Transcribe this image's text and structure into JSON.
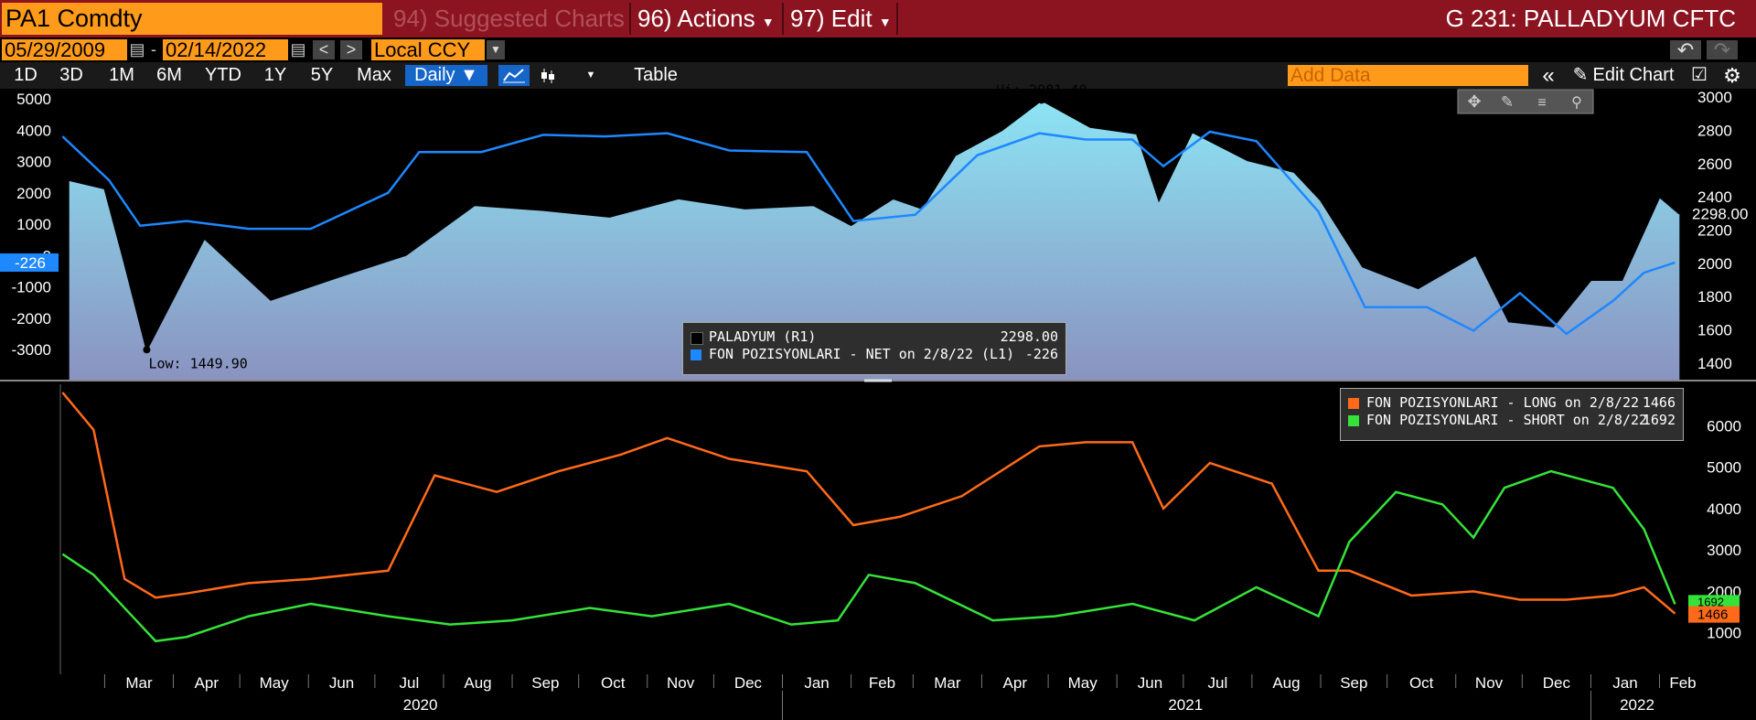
{
  "toolbar": {
    "ticker": "PA1 Comdty",
    "suggested": "94) Suggested Charts",
    "actions": "96) Actions",
    "edit": "97) Edit",
    "page_title": "G 231: PALLADYUM CFTC"
  },
  "range": {
    "start": "05/29/2009",
    "end": "02/14/2022",
    "currency": "Local CCY"
  },
  "periods": [
    "1D",
    "3D",
    "1M",
    "6M",
    "YTD",
    "1Y",
    "5Y",
    "Max"
  ],
  "frequency": "Daily",
  "table_label": "Table",
  "add_data_placeholder": "Add Data",
  "edit_chart_label": "Edit Chart",
  "colors": {
    "accent_orange": "#ff9a1a",
    "header_red": "#8c1421",
    "price": "#000000",
    "net": "#1e88ff",
    "long": "#ff6a1a",
    "short": "#35e23a"
  },
  "icons": [
    "calendar-icon",
    "arrow-left-icon",
    "arrow-right-icon",
    "dropdown-icon",
    "undo-icon",
    "redo-icon",
    "line-chart-icon",
    "candle-chart-icon",
    "chevron-double-left-icon",
    "pencil-icon",
    "gear-icon",
    "crosshair-icon",
    "annotate-icon",
    "notes-icon",
    "zoom-icon"
  ],
  "chart_data": [
    {
      "type": "line",
      "series": [
        {
          "name": "PALADYUM (R1)",
          "last": "2298.00",
          "x": [
            "2020-02-14",
            "2020-03-01",
            "2020-03-10",
            "2020-03-20",
            "2020-04-15",
            "2020-05-15",
            "2020-06-15",
            "2020-07-15",
            "2020-08-15",
            "2020-09-15",
            "2020-10-15",
            "2020-11-15",
            "2020-12-15",
            "2021-01-15",
            "2021-02-01",
            "2021-02-20",
            "2021-03-05",
            "2021-03-20",
            "2021-04-10",
            "2021-04-28",
            "2021-05-20",
            "2021-06-10",
            "2021-06-20",
            "2021-07-05",
            "2021-07-30",
            "2021-08-20",
            "2021-09-01",
            "2021-09-20",
            "2021-10-15",
            "2021-11-10",
            "2021-11-25",
            "2021-12-15",
            "2022-01-01",
            "2022-01-15",
            "2022-02-01",
            "2022-02-10"
          ],
          "values": [
            2500,
            2450,
            2000,
            1480,
            2150,
            1780,
            1920,
            2050,
            2350,
            2320,
            2280,
            2390,
            2330,
            2350,
            2230,
            2390,
            2330,
            2650,
            2800,
            2981.4,
            2820,
            2780,
            2380,
            2790,
            2620,
            2550,
            2380,
            1980,
            1850,
            2050,
            1650,
            1620,
            1900,
            1900,
            2400,
            2298
          ]
        },
        {
          "name": "FON POZISYONLARI - NET on 2/8/22 (L1)",
          "last": "-226",
          "x": [
            "2020-02-11",
            "2020-03-03",
            "2020-03-17",
            "2020-04-07",
            "2020-05-05",
            "2020-06-02",
            "2020-07-07",
            "2020-07-21",
            "2020-08-18",
            "2020-09-15",
            "2020-10-13",
            "2020-11-10",
            "2020-12-08",
            "2021-01-12",
            "2021-02-02",
            "2021-03-02",
            "2021-03-30",
            "2021-04-27",
            "2021-05-18",
            "2021-06-08",
            "2021-06-22",
            "2021-07-13",
            "2021-08-03",
            "2021-08-31",
            "2021-09-21",
            "2021-10-19",
            "2021-11-09",
            "2021-11-30",
            "2021-12-21",
            "2022-01-11",
            "2022-01-25",
            "2022-02-08"
          ],
          "values": [
            3800,
            2400,
            950,
            1100,
            850,
            850,
            2000,
            3300,
            3300,
            3850,
            3800,
            3900,
            3350,
            3300,
            1100,
            1300,
            3200,
            3900,
            3700,
            3700,
            2850,
            3950,
            3650,
            1400,
            -1650,
            -1650,
            -2400,
            -1200,
            -2500,
            -1450,
            -550,
            -226
          ]
        }
      ],
      "left_ticks": [
        "5000",
        "4000",
        "3000",
        "2000",
        "1000",
        "0",
        "-1000",
        "-2000",
        "-3000"
      ],
      "right_ticks": [
        "3000",
        "2800",
        "2600",
        "2400",
        "2200",
        "2000",
        "1800",
        "1600",
        "1400"
      ],
      "left_badge": "-226",
      "right_badge": "2298.00",
      "annotations": {
        "high": "Hi: 2981.40",
        "low": "Low: 1449.90"
      }
    },
    {
      "type": "line",
      "series": [
        {
          "name": "FON POZISYONLARI - LONG on 2/8/22",
          "last": "1466",
          "x": [
            "2020-02-11",
            "2020-02-25",
            "2020-03-10",
            "2020-03-24",
            "2020-04-07",
            "2020-05-05",
            "2020-06-02",
            "2020-07-07",
            "2020-07-28",
            "2020-08-25",
            "2020-09-22",
            "2020-10-20",
            "2020-11-10",
            "2020-12-08",
            "2021-01-12",
            "2021-02-02",
            "2021-02-23",
            "2021-03-23",
            "2021-04-27",
            "2021-05-18",
            "2021-06-08",
            "2021-06-22",
            "2021-07-13",
            "2021-08-10",
            "2021-08-31",
            "2021-09-14",
            "2021-10-12",
            "2021-11-09",
            "2021-11-30",
            "2021-12-21",
            "2022-01-11",
            "2022-01-25",
            "2022-02-08"
          ],
          "values": [
            6800,
            5900,
            2300,
            1850,
            1950,
            2200,
            2300,
            2500,
            4800,
            4400,
            4900,
            5300,
            5700,
            5200,
            4900,
            3600,
            3800,
            4300,
            5500,
            5600,
            5600,
            4000,
            5100,
            4600,
            2500,
            2500,
            1900,
            2000,
            1800,
            1800,
            1900,
            2100,
            1466
          ]
        },
        {
          "name": "FON POZISYONLARI - SHORT on 2/8/22",
          "last": "1692",
          "x": [
            "2020-02-11",
            "2020-02-25",
            "2020-03-10",
            "2020-03-24",
            "2020-04-07",
            "2020-05-05",
            "2020-06-02",
            "2020-07-07",
            "2020-08-04",
            "2020-09-01",
            "2020-10-06",
            "2020-11-03",
            "2020-12-08",
            "2021-01-05",
            "2021-01-26",
            "2021-02-09",
            "2021-03-02",
            "2021-04-06",
            "2021-05-04",
            "2021-06-08",
            "2021-07-06",
            "2021-08-03",
            "2021-08-31",
            "2021-09-14",
            "2021-10-05",
            "2021-10-26",
            "2021-11-09",
            "2021-11-23",
            "2021-12-14",
            "2022-01-11",
            "2022-01-25",
            "2022-02-08"
          ],
          "values": [
            2900,
            2400,
            1600,
            800,
            900,
            1400,
            1700,
            1400,
            1200,
            1300,
            1600,
            1400,
            1700,
            1200,
            1300,
            2400,
            2200,
            1300,
            1400,
            1700,
            1300,
            2100,
            1400,
            3200,
            4400,
            4100,
            3300,
            4500,
            4900,
            4500,
            3500,
            1692
          ]
        }
      ],
      "right_ticks": [
        "6000",
        "5000",
        "4000",
        "3000",
        "2000",
        "1000"
      ],
      "badges": [
        "1466",
        "1692"
      ]
    }
  ],
  "x_axis": {
    "months": [
      "Mar",
      "Apr",
      "May",
      "Jun",
      "Jul",
      "Aug",
      "Sep",
      "Oct",
      "Nov",
      "Dec",
      "Jan",
      "Feb",
      "Mar",
      "Apr",
      "May",
      "Jun",
      "Jul",
      "Aug",
      "Sep",
      "Oct",
      "Nov",
      "Dec",
      "Jan",
      "Feb"
    ],
    "years": [
      "2020",
      "2021",
      "2022"
    ]
  }
}
